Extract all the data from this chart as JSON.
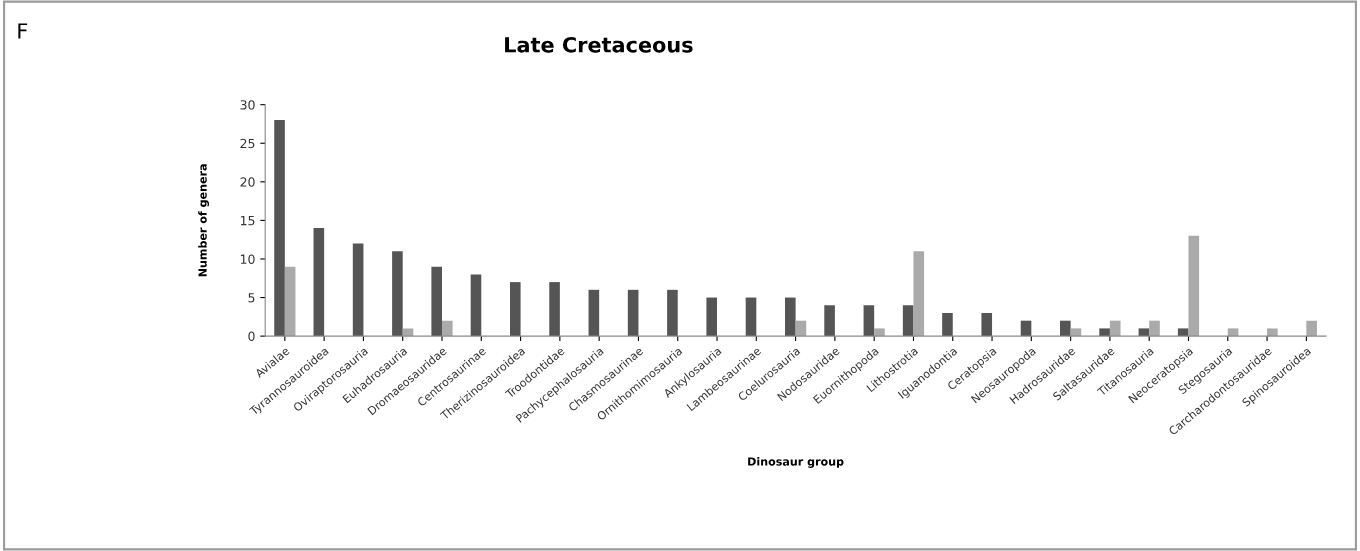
{
  "chart_data": {
    "type": "bar",
    "title": "Late Cretaceous",
    "xlabel": "Dinosaur group",
    "ylabel": "Number of genera",
    "annotations": [
      "F"
    ],
    "categories": [
      "Avialae",
      "Tyrannosauroidea",
      "Oviraptorosauria",
      "Euhadrosauria",
      "Dromaeosauridae",
      "Centrosaurinae",
      "Therizinosauroidea",
      "Troodontidae",
      "Pachycephalosauria",
      "Chasmosaurinae",
      "Ornithomimosauria",
      "Ankylosauria",
      "Lambeosaurinae",
      "Coelurosauria",
      "Nodosauridae",
      "Euornithopoda",
      "Lithostrotia",
      "Iguanodontia",
      "Ceratopsia",
      "Neosauropoda",
      "Hadrosauridae",
      "Saltasauridae",
      "Titanosauria",
      "Neoceratopsia",
      "Stegosauria",
      "Carcharodontosauridae",
      "Spinosauroidea"
    ],
    "series": [
      {
        "color": "#555555",
        "values": [
          28,
          14,
          12,
          11,
          9,
          8,
          7,
          7,
          6,
          6,
          6,
          5,
          5,
          5,
          4,
          4,
          4,
          3,
          3,
          2,
          2,
          1,
          1,
          1,
          0,
          0,
          0
        ]
      },
      {
        "color": "#aaaaaa",
        "values": [
          9,
          0,
          0,
          1,
          2,
          0,
          0,
          0,
          0,
          0,
          0,
          0,
          0,
          2,
          0,
          1,
          11,
          0,
          0,
          0,
          1,
          2,
          2,
          13,
          1,
          1,
          2
        ]
      }
    ],
    "ylim": [
      0,
      30
    ],
    "yticks": [
      0,
      5,
      10,
      15,
      20,
      25,
      30
    ],
    "grid": false,
    "legend": false
  }
}
